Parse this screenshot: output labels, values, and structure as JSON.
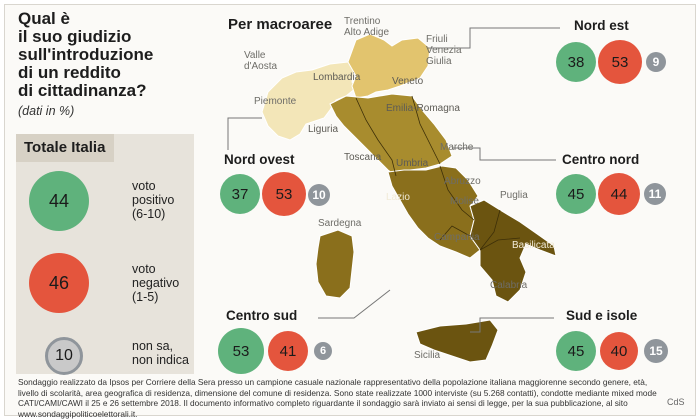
{
  "title": "Qual è\nil suo giudizio\nsull'introduzione\ndi un reddito\ndi cittadinanza?",
  "subtitle": "(dati in %)",
  "total": {
    "heading": "Totale Italia",
    "items": [
      {
        "value": "44",
        "label": "voto\npositivo\n(6-10)",
        "color": "#5fb27c"
      },
      {
        "value": "46",
        "label": "voto\nnegativo\n(1-5)",
        "color": "#e4553d"
      },
      {
        "value": "10",
        "label": "non sa,\nnon indica",
        "color": "#8f959b"
      }
    ]
  },
  "map_heading": "Per macroaree",
  "macroareas": {
    "nord_est": {
      "name": "Nord est",
      "positive": "38",
      "negative": "53",
      "unsure": "9"
    },
    "nord_ovest": {
      "name": "Nord ovest",
      "positive": "37",
      "negative": "53",
      "unsure": "10"
    },
    "centro_nord": {
      "name": "Centro nord",
      "positive": "45",
      "negative": "44",
      "unsure": "11"
    },
    "centro_sud": {
      "name": "Centro sud",
      "positive": "53",
      "negative": "41",
      "unsure": "6"
    },
    "sud_isole": {
      "name": "Sud e isole",
      "positive": "45",
      "negative": "40",
      "unsure": "15"
    }
  },
  "region_labels": {
    "trentino": "Trentino\nAlto Adige",
    "friuli": "Friuli\nVenezia\nGiulia",
    "valle_aosta": "Valle\nd'Aosta",
    "lombardia": "Lombardia",
    "veneto": "Veneto",
    "piemonte": "Piemonte",
    "emilia": "Emilia-Romagna",
    "liguria": "Liguria",
    "marche": "Marche",
    "toscana": "Toscana",
    "umbria": "Umbria",
    "abruzzo": "Abruzzo",
    "sardegna": "Sardegna",
    "lazio": "Lazio",
    "molise": "Molise",
    "puglia": "Puglia",
    "campania": "Campania",
    "basilicata": "Basilicata",
    "calabria": "Calabria",
    "sicilia": "Sicilia"
  },
  "colors": {
    "positive": "#5fb27c",
    "negative": "#e4553d",
    "unsure": "#8f959b",
    "nord_ovest_fill": "#f3e6b8",
    "nord_est_fill": "#e2c46e",
    "centro_nord_fill": "#a88c2e",
    "centro_sud_fill": "#8a6f1c",
    "sud_isole_fill": "#6b5410"
  },
  "footer": "Sondaggio realizzato da Ipsos per Corriere della Sera presso un campione casuale nazionale rappresentativo della popolazione italiana maggiorenne secondo genere, età, livello di scolarità, area geografica di residenza, dimensione del comune di residenza. Sono state realizzate 1000 interviste (su 5.268 contatti), condotte mediante mixed mode CATI/CAMI/CAWI il 25 e 26 settembre 2018. Il documento informativo completo riguardante il sondaggio sarà inviato ai sensi di legge, per la sua pubblicazione, al sito www.sondaggipoliticoelettorali.it.",
  "credit": "CdS"
}
